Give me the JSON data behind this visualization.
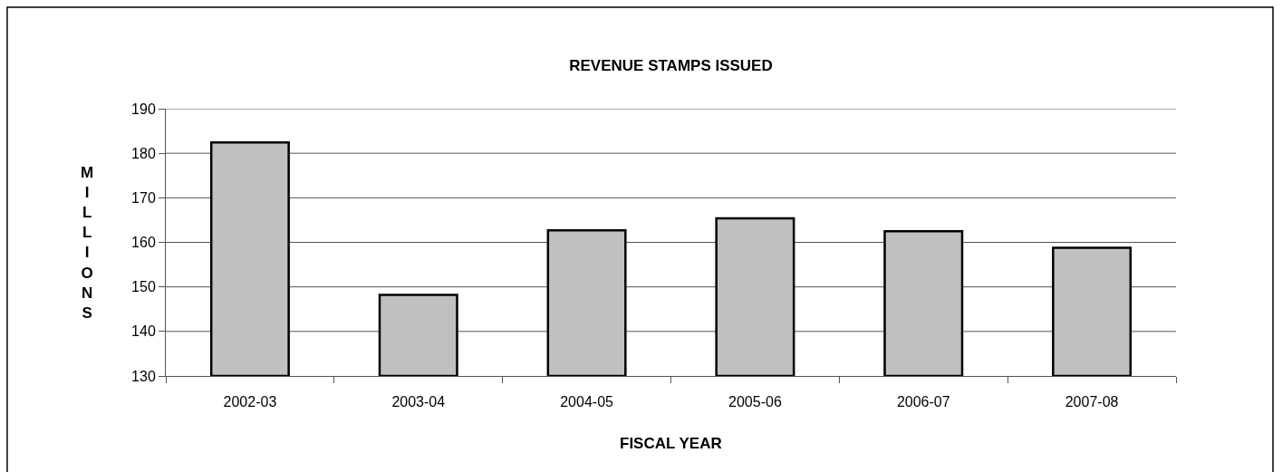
{
  "chart_data": {
    "type": "bar",
    "title": "REVENUE STAMPS ISSUED",
    "xlabel": "FISCAL YEAR",
    "ylabel": "MILLIONS",
    "categories": [
      "2002-03",
      "2003-04",
      "2004-05",
      "2005-06",
      "2006-07",
      "2007-08"
    ],
    "values": [
      182.4,
      148.2,
      162.7,
      165.4,
      162.5,
      158.8
    ],
    "color": "#c0c0c0",
    "ylim": [
      130,
      190
    ],
    "yticks": [
      130,
      140,
      150,
      160,
      170,
      180,
      190
    ],
    "grid": "y"
  }
}
